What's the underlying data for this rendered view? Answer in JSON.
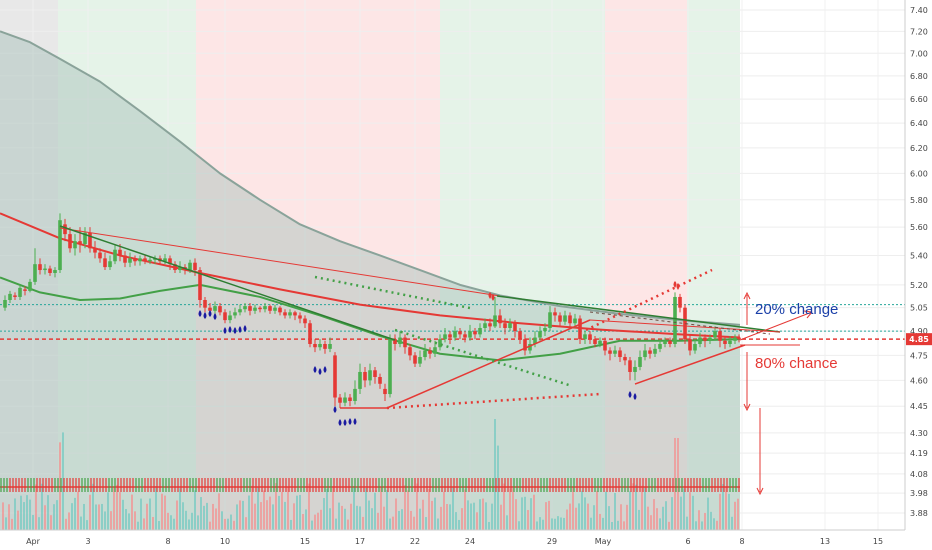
{
  "chart_data": {
    "type": "candlestick",
    "x_axis": {
      "tick_labels": [
        "Apr",
        "3",
        "8",
        "10",
        "15",
        "17",
        "22",
        "24",
        "29",
        "May",
        "6",
        "8",
        "13",
        "15"
      ]
    },
    "y_axis": {
      "range": [
        3.76,
        7.48
      ],
      "tick_values": [
        3.88,
        3.98,
        4.08,
        4.19,
        4.3,
        4.45,
        4.6,
        4.75,
        4.9,
        5.05,
        5.2,
        5.4,
        5.6,
        5.8,
        6.0,
        6.2,
        6.4,
        6.6,
        6.8,
        7.0,
        7.2,
        7.4
      ],
      "tick_labels": [
        "3.88",
        "3.98",
        "4.08",
        "4.19",
        "4.30",
        "4.45",
        "4.60",
        "4.75",
        "4.90",
        "5.05",
        "5.20",
        "5.40",
        "5.60",
        "5.80",
        "6.00",
        "6.20",
        "6.40",
        "6.60",
        "6.80",
        "7.00",
        "7.20",
        "7.40"
      ],
      "scale": "log",
      "position": "right"
    },
    "last_price": {
      "value": 4.85,
      "label": "4.85",
      "color": "#e53935"
    },
    "resistance_level": 5.07,
    "support_level": 4.9,
    "moving_averages": [
      {
        "color": "#e53935",
        "x": [
          0,
          60,
          120,
          200,
          280,
          360,
          440,
          520,
          600,
          680,
          740
        ],
        "y": [
          5.7,
          5.52,
          5.4,
          5.28,
          5.17,
          5.07,
          5.0,
          4.95,
          4.91,
          4.88,
          4.86
        ]
      },
      {
        "color": "#43a047",
        "x": [
          0,
          40,
          80,
          120,
          160,
          200,
          260,
          320,
          380,
          440,
          500,
          560,
          620,
          680,
          740
        ],
        "y": [
          5.25,
          5.15,
          5.1,
          5.11,
          5.16,
          5.2,
          5.12,
          5.0,
          4.87,
          4.76,
          4.72,
          4.76,
          4.84,
          4.84,
          4.85
        ]
      },
      {
        "color": "#8aa39a",
        "x": [
          0,
          30,
          60,
          100,
          140,
          180,
          220,
          260,
          300,
          340,
          380,
          420,
          460,
          500,
          560,
          620,
          680,
          740
        ],
        "y": [
          7.2,
          7.1,
          6.95,
          6.75,
          6.5,
          6.25,
          6.0,
          5.8,
          5.62,
          5.5,
          5.4,
          5.3,
          5.2,
          5.13,
          5.06,
          5.01,
          4.97,
          4.94
        ]
      }
    ],
    "candles": [
      {
        "x": 5,
        "o": 5.05,
        "c": 5.1,
        "h": 5.13,
        "l": 5.03
      },
      {
        "x": 10,
        "o": 5.1,
        "c": 5.14,
        "h": 5.16,
        "l": 5.08
      },
      {
        "x": 15,
        "o": 5.13,
        "c": 5.12,
        "h": 5.15,
        "l": 5.1
      },
      {
        "x": 20,
        "o": 5.12,
        "c": 5.18,
        "h": 5.2,
        "l": 5.1
      },
      {
        "x": 25,
        "o": 5.17,
        "c": 5.16,
        "h": 5.19,
        "l": 5.13
      },
      {
        "x": 30,
        "o": 5.16,
        "c": 5.22,
        "h": 5.24,
        "l": 5.15
      },
      {
        "x": 35,
        "o": 5.22,
        "c": 5.34,
        "h": 5.45,
        "l": 5.2
      },
      {
        "x": 40,
        "o": 5.34,
        "c": 5.3,
        "h": 5.38,
        "l": 5.27
      },
      {
        "x": 45,
        "o": 5.3,
        "c": 5.31,
        "h": 5.34,
        "l": 5.27
      },
      {
        "x": 50,
        "o": 5.31,
        "c": 5.28,
        "h": 5.33,
        "l": 5.26
      },
      {
        "x": 55,
        "o": 5.28,
        "c": 5.3,
        "h": 5.32,
        "l": 5.25
      },
      {
        "x": 60,
        "o": 5.3,
        "c": 5.65,
        "h": 5.7,
        "l": 5.28
      },
      {
        "x": 65,
        "o": 5.62,
        "c": 5.55,
        "h": 5.66,
        "l": 5.5
      },
      {
        "x": 70,
        "o": 5.55,
        "c": 5.45,
        "h": 5.6,
        "l": 5.42
      },
      {
        "x": 75,
        "o": 5.45,
        "c": 5.5,
        "h": 5.55,
        "l": 5.4
      },
      {
        "x": 80,
        "o": 5.5,
        "c": 5.48,
        "h": 5.6,
        "l": 5.42
      },
      {
        "x": 85,
        "o": 5.48,
        "c": 5.56,
        "h": 5.6,
        "l": 5.45
      },
      {
        "x": 90,
        "o": 5.56,
        "c": 5.45,
        "h": 5.6,
        "l": 5.42
      },
      {
        "x": 95,
        "o": 5.45,
        "c": 5.42,
        "h": 5.5,
        "l": 5.38
      },
      {
        "x": 100,
        "o": 5.42,
        "c": 5.38,
        "h": 5.45,
        "l": 5.35
      },
      {
        "x": 105,
        "o": 5.38,
        "c": 5.32,
        "h": 5.42,
        "l": 5.3
      },
      {
        "x": 110,
        "o": 5.32,
        "c": 5.36,
        "h": 5.4,
        "l": 5.3
      },
      {
        "x": 115,
        "o": 5.36,
        "c": 5.44,
        "h": 5.48,
        "l": 5.34
      },
      {
        "x": 120,
        "o": 5.44,
        "c": 5.4,
        "h": 5.48,
        "l": 5.36
      },
      {
        "x": 125,
        "o": 5.4,
        "c": 5.35,
        "h": 5.43,
        "l": 5.32
      },
      {
        "x": 130,
        "o": 5.35,
        "c": 5.38,
        "h": 5.42,
        "l": 5.32
      },
      {
        "x": 135,
        "o": 5.38,
        "c": 5.36,
        "h": 5.4,
        "l": 5.33
      },
      {
        "x": 140,
        "o": 5.36,
        "c": 5.38,
        "h": 5.4,
        "l": 5.33
      },
      {
        "x": 145,
        "o": 5.38,
        "c": 5.36,
        "h": 5.4,
        "l": 5.34
      },
      {
        "x": 150,
        "o": 5.36,
        "c": 5.37,
        "h": 5.39,
        "l": 5.34
      },
      {
        "x": 155,
        "o": 5.37,
        "c": 5.38,
        "h": 5.4,
        "l": 5.34
      },
      {
        "x": 160,
        "o": 5.38,
        "c": 5.36,
        "h": 5.4,
        "l": 5.34
      },
      {
        "x": 165,
        "o": 5.36,
        "c": 5.38,
        "h": 5.41,
        "l": 5.34
      },
      {
        "x": 170,
        "o": 5.38,
        "c": 5.34,
        "h": 5.4,
        "l": 5.3
      },
      {
        "x": 175,
        "o": 5.34,
        "c": 5.3,
        "h": 5.36,
        "l": 5.28
      },
      {
        "x": 180,
        "o": 5.3,
        "c": 5.32,
        "h": 5.36,
        "l": 5.28
      },
      {
        "x": 185,
        "o": 5.32,
        "c": 5.3,
        "h": 5.34,
        "l": 5.27
      },
      {
        "x": 190,
        "o": 5.3,
        "c": 5.35,
        "h": 5.37,
        "l": 5.28
      },
      {
        "x": 195,
        "o": 5.35,
        "c": 5.3,
        "h": 5.38,
        "l": 5.26
      },
      {
        "x": 200,
        "o": 5.3,
        "c": 5.1,
        "h": 5.32,
        "l": 5.05
      },
      {
        "x": 205,
        "o": 5.1,
        "c": 5.05,
        "h": 5.12,
        "l": 5.02
      },
      {
        "x": 210,
        "o": 5.05,
        "c": 5.03,
        "h": 5.08,
        "l": 5.0
      },
      {
        "x": 215,
        "o": 5.03,
        "c": 5.06,
        "h": 5.09,
        "l": 5.01
      },
      {
        "x": 220,
        "o": 5.06,
        "c": 5.02,
        "h": 5.08,
        "l": 5.0
      },
      {
        "x": 225,
        "o": 5.02,
        "c": 4.97,
        "h": 5.04,
        "l": 4.95
      },
      {
        "x": 230,
        "o": 4.97,
        "c": 5.0,
        "h": 5.03,
        "l": 4.95
      },
      {
        "x": 235,
        "o": 5.0,
        "c": 5.02,
        "h": 5.05,
        "l": 4.98
      },
      {
        "x": 240,
        "o": 5.02,
        "c": 5.04,
        "h": 5.07,
        "l": 5.0
      },
      {
        "x": 245,
        "o": 5.04,
        "c": 5.06,
        "h": 5.08,
        "l": 5.02
      },
      {
        "x": 250,
        "o": 5.06,
        "c": 5.03,
        "h": 5.08,
        "l": 5.0
      },
      {
        "x": 255,
        "o": 5.03,
        "c": 5.05,
        "h": 5.07,
        "l": 5.01
      },
      {
        "x": 260,
        "o": 5.05,
        "c": 5.04,
        "h": 5.06,
        "l": 5.02
      },
      {
        "x": 265,
        "o": 5.04,
        "c": 5.06,
        "h": 5.08,
        "l": 5.02
      },
      {
        "x": 270,
        "o": 5.06,
        "c": 5.03,
        "h": 5.07,
        "l": 5.01
      },
      {
        "x": 275,
        "o": 5.03,
        "c": 5.05,
        "h": 5.07,
        "l": 5.01
      },
      {
        "x": 280,
        "o": 5.05,
        "c": 5.02,
        "h": 5.06,
        "l": 5.0
      },
      {
        "x": 285,
        "o": 5.02,
        "c": 5.0,
        "h": 5.04,
        "l": 4.98
      },
      {
        "x": 290,
        "o": 5.0,
        "c": 5.02,
        "h": 5.04,
        "l": 4.98
      },
      {
        "x": 295,
        "o": 5.02,
        "c": 5.0,
        "h": 5.03,
        "l": 4.97
      },
      {
        "x": 300,
        "o": 5.0,
        "c": 4.98,
        "h": 5.02,
        "l": 4.95
      },
      {
        "x": 305,
        "o": 4.98,
        "c": 4.95,
        "h": 5.0,
        "l": 4.92
      },
      {
        "x": 310,
        "o": 4.95,
        "c": 4.82,
        "h": 4.97,
        "l": 4.8
      },
      {
        "x": 315,
        "o": 4.82,
        "c": 4.8,
        "h": 4.85,
        "l": 4.77
      },
      {
        "x": 320,
        "o": 4.8,
        "c": 4.82,
        "h": 4.85,
        "l": 4.78
      },
      {
        "x": 325,
        "o": 4.82,
        "c": 4.79,
        "h": 4.84,
        "l": 4.76
      },
      {
        "x": 330,
        "o": 4.79,
        "c": 4.82,
        "h": 4.86,
        "l": 4.77
      },
      {
        "x": 335,
        "o": 4.75,
        "c": 4.5,
        "h": 4.77,
        "l": 4.45
      },
      {
        "x": 340,
        "o": 4.5,
        "c": 4.47,
        "h": 4.52,
        "l": 4.44
      },
      {
        "x": 345,
        "o": 4.47,
        "c": 4.5,
        "h": 4.53,
        "l": 4.45
      },
      {
        "x": 350,
        "o": 4.5,
        "c": 4.48,
        "h": 4.52,
        "l": 4.45
      },
      {
        "x": 355,
        "o": 4.48,
        "c": 4.55,
        "h": 4.6,
        "l": 4.46
      },
      {
        "x": 360,
        "o": 4.55,
        "c": 4.65,
        "h": 4.7,
        "l": 4.52
      },
      {
        "x": 365,
        "o": 4.65,
        "c": 4.6,
        "h": 4.68,
        "l": 4.56
      },
      {
        "x": 370,
        "o": 4.6,
        "c": 4.66,
        "h": 4.7,
        "l": 4.57
      },
      {
        "x": 375,
        "o": 4.66,
        "c": 4.62,
        "h": 4.68,
        "l": 4.58
      },
      {
        "x": 380,
        "o": 4.62,
        "c": 4.58,
        "h": 4.64,
        "l": 4.55
      },
      {
        "x": 385,
        "o": 4.55,
        "c": 4.52,
        "h": 4.58,
        "l": 4.48
      },
      {
        "x": 390,
        "o": 4.52,
        "c": 4.85,
        "h": 4.88,
        "l": 4.5
      },
      {
        "x": 395,
        "o": 4.85,
        "c": 4.82,
        "h": 4.88,
        "l": 4.78
      },
      {
        "x": 400,
        "o": 4.82,
        "c": 4.86,
        "h": 4.9,
        "l": 4.8
      },
      {
        "x": 405,
        "o": 4.86,
        "c": 4.8,
        "h": 4.88,
        "l": 4.76
      },
      {
        "x": 410,
        "o": 4.8,
        "c": 4.75,
        "h": 4.82,
        "l": 4.72
      },
      {
        "x": 415,
        "o": 4.75,
        "c": 4.7,
        "h": 4.77,
        "l": 4.68
      },
      {
        "x": 420,
        "o": 4.7,
        "c": 4.74,
        "h": 4.78,
        "l": 4.68
      },
      {
        "x": 425,
        "o": 4.74,
        "c": 4.78,
        "h": 4.82,
        "l": 4.72
      },
      {
        "x": 430,
        "o": 4.78,
        "c": 4.76,
        "h": 4.8,
        "l": 4.73
      },
      {
        "x": 435,
        "o": 4.76,
        "c": 4.8,
        "h": 4.84,
        "l": 4.74
      },
      {
        "x": 440,
        "o": 4.8,
        "c": 4.85,
        "h": 4.88,
        "l": 4.78
      },
      {
        "x": 445,
        "o": 4.85,
        "c": 4.88,
        "h": 4.92,
        "l": 4.83
      },
      {
        "x": 450,
        "o": 4.88,
        "c": 4.86,
        "h": 4.9,
        "l": 4.82
      },
      {
        "x": 455,
        "o": 4.86,
        "c": 4.9,
        "h": 4.93,
        "l": 4.84
      },
      {
        "x": 460,
        "o": 4.9,
        "c": 4.88,
        "h": 4.92,
        "l": 4.85
      },
      {
        "x": 465,
        "o": 4.88,
        "c": 4.86,
        "h": 4.9,
        "l": 4.83
      },
      {
        "x": 470,
        "o": 4.86,
        "c": 4.9,
        "h": 4.94,
        "l": 4.84
      },
      {
        "x": 475,
        "o": 4.9,
        "c": 4.88,
        "h": 4.92,
        "l": 4.85
      },
      {
        "x": 480,
        "o": 4.88,
        "c": 4.92,
        "h": 4.95,
        "l": 4.86
      },
      {
        "x": 485,
        "o": 4.92,
        "c": 4.95,
        "h": 4.98,
        "l": 4.9
      },
      {
        "x": 490,
        "o": 4.95,
        "c": 4.93,
        "h": 4.98,
        "l": 4.9
      },
      {
        "x": 495,
        "o": 4.93,
        "c": 5.0,
        "h": 5.12,
        "l": 4.92
      },
      {
        "x": 500,
        "o": 5.0,
        "c": 4.95,
        "h": 5.04,
        "l": 4.92
      },
      {
        "x": 505,
        "o": 4.95,
        "c": 4.92,
        "h": 4.98,
        "l": 4.88
      },
      {
        "x": 510,
        "o": 4.92,
        "c": 4.95,
        "h": 4.98,
        "l": 4.9
      },
      {
        "x": 515,
        "o": 4.95,
        "c": 4.9,
        "h": 4.97,
        "l": 4.86
      },
      {
        "x": 520,
        "o": 4.9,
        "c": 4.85,
        "h": 4.92,
        "l": 4.82
      },
      {
        "x": 525,
        "o": 4.85,
        "c": 4.78,
        "h": 4.88,
        "l": 4.75
      },
      {
        "x": 530,
        "o": 4.78,
        "c": 4.82,
        "h": 4.86,
        "l": 4.76
      },
      {
        "x": 535,
        "o": 4.82,
        "c": 4.86,
        "h": 4.9,
        "l": 4.8
      },
      {
        "x": 540,
        "o": 4.86,
        "c": 4.9,
        "h": 4.93,
        "l": 4.84
      },
      {
        "x": 545,
        "o": 4.9,
        "c": 4.92,
        "h": 4.95,
        "l": 4.87
      },
      {
        "x": 550,
        "o": 4.92,
        "c": 5.02,
        "h": 5.06,
        "l": 4.9
      },
      {
        "x": 555,
        "o": 5.02,
        "c": 5.0,
        "h": 5.05,
        "l": 4.96
      },
      {
        "x": 560,
        "o": 5.0,
        "c": 4.96,
        "h": 5.02,
        "l": 4.93
      },
      {
        "x": 565,
        "o": 4.96,
        "c": 5.0,
        "h": 5.03,
        "l": 4.94
      },
      {
        "x": 570,
        "o": 5.0,
        "c": 4.95,
        "h": 5.02,
        "l": 4.92
      },
      {
        "x": 575,
        "o": 4.95,
        "c": 4.98,
        "h": 5.01,
        "l": 4.92
      },
      {
        "x": 580,
        "o": 4.98,
        "c": 4.85,
        "h": 5.0,
        "l": 4.82
      },
      {
        "x": 585,
        "o": 4.85,
        "c": 4.88,
        "h": 4.9,
        "l": 4.82
      },
      {
        "x": 590,
        "o": 4.88,
        "c": 4.85,
        "h": 4.9,
        "l": 4.82
      },
      {
        "x": 595,
        "o": 4.85,
        "c": 4.82,
        "h": 4.87,
        "l": 4.8
      },
      {
        "x": 600,
        "o": 4.82,
        "c": 4.84,
        "h": 4.86,
        "l": 4.8
      },
      {
        "x": 605,
        "o": 4.84,
        "c": 4.78,
        "h": 4.86,
        "l": 4.75
      },
      {
        "x": 610,
        "o": 4.78,
        "c": 4.76,
        "h": 4.8,
        "l": 4.72
      },
      {
        "x": 615,
        "o": 4.76,
        "c": 4.78,
        "h": 4.81,
        "l": 4.74
      },
      {
        "x": 620,
        "o": 4.78,
        "c": 4.74,
        "h": 4.8,
        "l": 4.71
      },
      {
        "x": 625,
        "o": 4.74,
        "c": 4.72,
        "h": 4.76,
        "l": 4.69
      },
      {
        "x": 630,
        "o": 4.72,
        "c": 4.65,
        "h": 4.74,
        "l": 4.6
      },
      {
        "x": 635,
        "o": 4.65,
        "c": 4.68,
        "h": 4.72,
        "l": 4.6
      },
      {
        "x": 640,
        "o": 4.68,
        "c": 4.74,
        "h": 4.78,
        "l": 4.66
      },
      {
        "x": 645,
        "o": 4.74,
        "c": 4.78,
        "h": 4.82,
        "l": 4.72
      },
      {
        "x": 650,
        "o": 4.78,
        "c": 4.76,
        "h": 4.8,
        "l": 4.73
      },
      {
        "x": 655,
        "o": 4.76,
        "c": 4.79,
        "h": 4.82,
        "l": 4.74
      },
      {
        "x": 660,
        "o": 4.79,
        "c": 4.82,
        "h": 4.85,
        "l": 4.77
      },
      {
        "x": 665,
        "o": 4.82,
        "c": 4.84,
        "h": 4.86,
        "l": 4.8
      },
      {
        "x": 670,
        "o": 4.84,
        "c": 4.82,
        "h": 4.86,
        "l": 4.8
      },
      {
        "x": 675,
        "o": 4.82,
        "c": 5.12,
        "h": 5.15,
        "l": 4.8
      },
      {
        "x": 680,
        "o": 5.12,
        "c": 5.05,
        "h": 5.14,
        "l": 5.02
      },
      {
        "x": 685,
        "o": 5.05,
        "c": 4.85,
        "h": 5.07,
        "l": 4.82
      },
      {
        "x": 690,
        "o": 4.85,
        "c": 4.78,
        "h": 4.88,
        "l": 4.75
      },
      {
        "x": 695,
        "o": 4.78,
        "c": 4.82,
        "h": 4.85,
        "l": 4.76
      },
      {
        "x": 700,
        "o": 4.82,
        "c": 4.86,
        "h": 4.89,
        "l": 4.8
      },
      {
        "x": 705,
        "o": 4.86,
        "c": 4.84,
        "h": 4.88,
        "l": 4.8
      },
      {
        "x": 710,
        "o": 4.84,
        "c": 4.86,
        "h": 4.88,
        "l": 4.82
      },
      {
        "x": 715,
        "o": 4.86,
        "c": 4.9,
        "h": 4.93,
        "l": 4.84
      },
      {
        "x": 720,
        "o": 4.9,
        "c": 4.84,
        "h": 4.92,
        "l": 4.8
      },
      {
        "x": 725,
        "o": 4.84,
        "c": 4.82,
        "h": 4.86,
        "l": 4.79
      },
      {
        "x": 730,
        "o": 4.82,
        "c": 4.84,
        "h": 4.87,
        "l": 4.8
      },
      {
        "x": 735,
        "o": 4.84,
        "c": 4.86,
        "h": 4.88,
        "l": 4.82
      },
      {
        "x": 739,
        "o": 4.86,
        "c": 4.85,
        "h": 4.88,
        "l": 4.83
      }
    ],
    "annotations": [
      {
        "text": "20% change",
        "color": "#1a3fa8"
      },
      {
        "text": "80% chance",
        "color": "#e53935"
      }
    ],
    "colors": {
      "up": "#4caf50",
      "down": "#e53935",
      "arrow_top": "#e53935",
      "arrow_bottom": "#1a1aa0"
    }
  }
}
